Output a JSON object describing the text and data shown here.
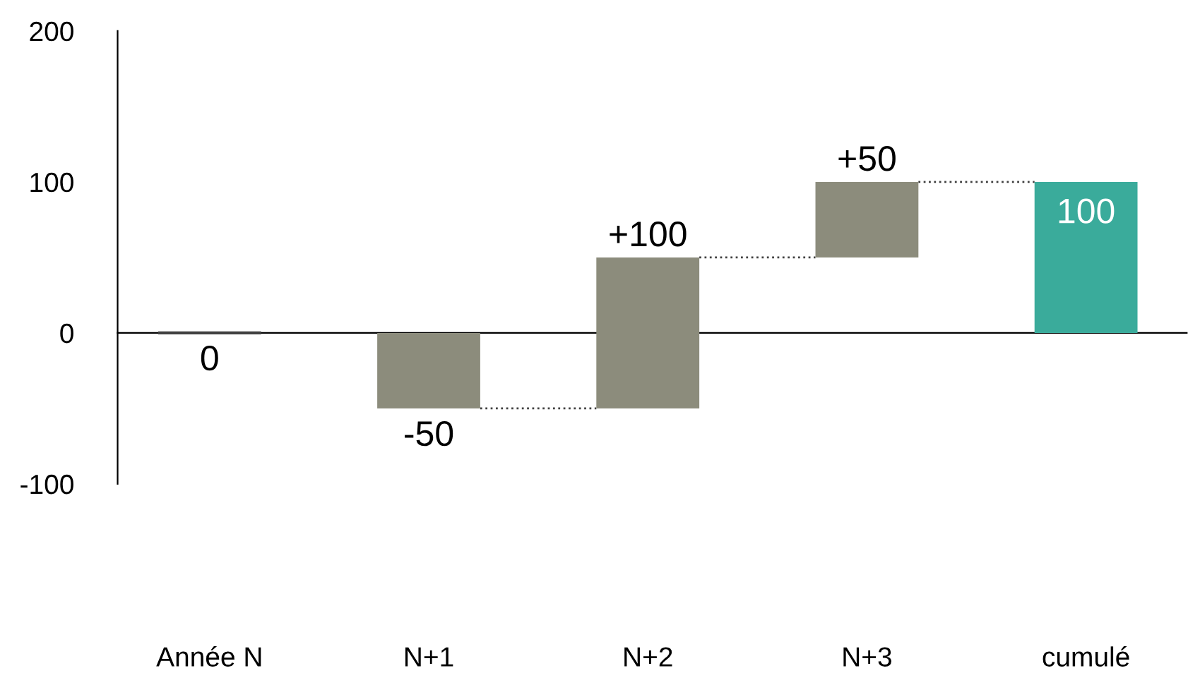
{
  "chart_data": {
    "type": "bar",
    "categories": [
      "Année N",
      "N+1",
      "N+2",
      "N+3",
      "cumulé"
    ],
    "values": [
      0,
      -50,
      100,
      50,
      100
    ],
    "base": [
      0,
      0,
      -50,
      50,
      0
    ],
    "colors": [
      "#404040",
      "#8c8c7c",
      "#8c8c7c",
      "#8c8c7c",
      "#3aab9b"
    ],
    "value_labels": [
      "0",
      "-50",
      "+100",
      "+50",
      "100"
    ],
    "ylim": [
      -100,
      200
    ],
    "yticks": [
      -100,
      0,
      100,
      200
    ],
    "legend": false
  }
}
